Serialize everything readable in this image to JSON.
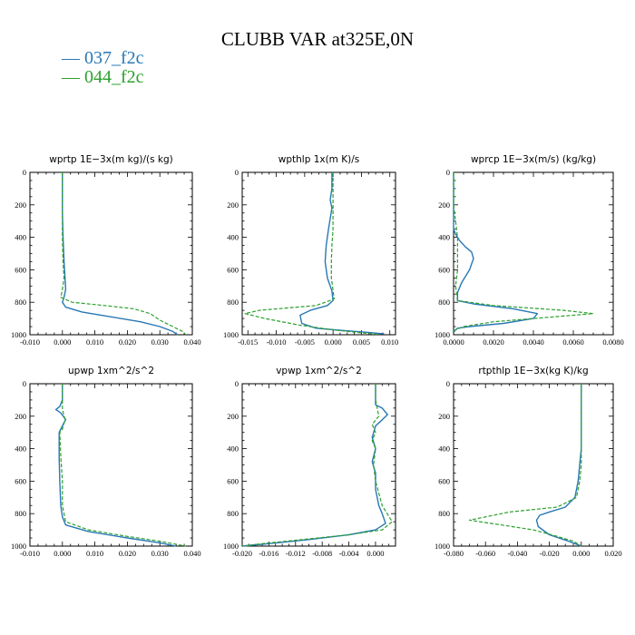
{
  "figure": {
    "title": "CLUBB VAR at325E,0N",
    "legend": [
      {
        "label": "— 037_f2c",
        "color": "#2878b5"
      },
      {
        "label": "— 044_f2c",
        "color": "#2ca02c"
      }
    ]
  },
  "chart_data": [
    {
      "type": "line",
      "title": "wprtp   1E−3x(m kg)/(s kg)",
      "xlim": [
        -0.01,
        0.04
      ],
      "xticks": [
        -0.01,
        0.0,
        0.01,
        0.02,
        0.03,
        0.04
      ],
      "xtick_labels": [
        "-0.010",
        "0.000",
        "0.010",
        "0.020",
        "0.030",
        "0.040"
      ],
      "ylim": [
        0,
        1000
      ],
      "yticks": [
        0,
        200,
        400,
        600,
        800,
        1000
      ],
      "ytick_labels": [
        "0",
        "200",
        "400",
        "600",
        "800",
        "1000"
      ],
      "series": [
        {
          "name": "037_f2c",
          "color": "#2878b5",
          "dashed": false,
          "x": [
            0.0,
            0.0,
            0.0,
            0.0002,
            0.0005,
            0.0008,
            0.001,
            0.0005,
            0.0,
            0.001,
            0.006,
            0.015,
            0.024,
            0.03,
            0.034,
            0.0355
          ],
          "y": [
            0,
            100,
            250,
            400,
            550,
            650,
            720,
            770,
            800,
            830,
            860,
            890,
            920,
            950,
            980,
            1000
          ]
        },
        {
          "name": "044_f2c",
          "color": "#2ca02c",
          "dashed": true,
          "x": [
            0.0,
            0.0,
            0.0,
            0.0,
            0.0002,
            0.0005,
            0.0,
            -0.0005,
            0.003,
            0.013,
            0.022,
            0.027,
            0.03,
            0.034,
            0.037,
            0.038
          ],
          "y": [
            0,
            100,
            250,
            400,
            550,
            650,
            720,
            770,
            800,
            820,
            840,
            870,
            910,
            950,
            980,
            1000
          ]
        }
      ]
    },
    {
      "type": "line",
      "title": "wpthlp   1x(m K)/s",
      "xlim": [
        -0.016,
        0.011
      ],
      "xticks": [
        -0.015,
        -0.01,
        -0.005,
        0.0,
        0.005,
        0.01
      ],
      "xtick_labels": [
        "-0.015",
        "-0.010",
        "-0.005",
        "0.000",
        "0.005",
        "0.010"
      ],
      "ylim": [
        0,
        1000
      ],
      "yticks": [
        0,
        200,
        400,
        600,
        800,
        1000
      ],
      "ytick_labels": [
        "0",
        "200",
        "400",
        "600",
        "800",
        "1000"
      ],
      "series": [
        {
          "name": "037_f2c",
          "color": "#2878b5",
          "dashed": false,
          "x": [
            -0.0002,
            -0.0002,
            -0.0005,
            -0.0002,
            -0.0008,
            -0.0012,
            -0.0014,
            -0.001,
            -0.0002,
            0.0,
            -0.001,
            -0.004,
            -0.0058,
            -0.0055,
            -0.003,
            0.002,
            0.006,
            0.009
          ],
          "y": [
            0,
            100,
            170,
            220,
            350,
            450,
            550,
            650,
            730,
            790,
            820,
            850,
            880,
            930,
            960,
            975,
            985,
            995
          ]
        },
        {
          "name": "044_f2c",
          "color": "#2ca02c",
          "dashed": true,
          "x": [
            0.0,
            0.0,
            0.0,
            0.0,
            -0.0002,
            -0.0003,
            -0.0003,
            0.0002,
            -0.003,
            -0.013,
            -0.0155,
            -0.012,
            -0.006,
            0.0,
            0.004,
            0.008
          ],
          "y": [
            0,
            100,
            200,
            350,
            450,
            550,
            650,
            780,
            820,
            850,
            870,
            900,
            940,
            970,
            985,
            998
          ]
        }
      ]
    },
    {
      "type": "line",
      "title": "wprcp   1E−3x(m/s) (kg/kg)",
      "xlim": [
        0.0,
        0.008
      ],
      "xticks": [
        0.0,
        0.002,
        0.004,
        0.006,
        0.008
      ],
      "xtick_labels": [
        "0.0000",
        "0.0020",
        "0.0040",
        "0.0060",
        "0.0080"
      ],
      "ylim": [
        0,
        1000
      ],
      "yticks": [
        0,
        200,
        400,
        600,
        800,
        1000
      ],
      "ytick_labels": [
        "0",
        "200",
        "400",
        "600",
        "800",
        "1000"
      ],
      "series": [
        {
          "name": "037_f2c",
          "color": "#2878b5",
          "dashed": false,
          "x": [
            0.0,
            0.0,
            0.0,
            0.0001,
            0.0003,
            0.0006,
            0.0009,
            0.001,
            0.0008,
            0.0004,
            0.0002,
            0.0002,
            0.001,
            0.003,
            0.0042,
            0.004,
            0.0025,
            0.0008,
            0.0002,
            0.0
          ],
          "y": [
            0,
            200,
            350,
            380,
            420,
            460,
            490,
            530,
            600,
            680,
            740,
            790,
            810,
            840,
            870,
            900,
            930,
            950,
            960,
            980
          ]
        },
        {
          "name": "044_f2c",
          "color": "#2ca02c",
          "dashed": true,
          "x": [
            0.0,
            0.0,
            0.0001,
            0.0002,
            0.0002,
            0.0002,
            0.0001,
            0.0002,
            0.002,
            0.0055,
            0.007,
            0.005,
            0.002,
            0.0005,
            0.0001,
            0.0
          ],
          "y": [
            0,
            200,
            300,
            400,
            500,
            600,
            700,
            790,
            820,
            850,
            870,
            890,
            920,
            950,
            970,
            990
          ]
        }
      ]
    },
    {
      "type": "line",
      "title": "upwp   1xm^2/s^2",
      "xlim": [
        -0.01,
        0.04
      ],
      "xticks": [
        -0.01,
        0.0,
        0.01,
        0.02,
        0.03,
        0.04
      ],
      "xtick_labels": [
        "-0.010",
        "0.000",
        "0.010",
        "0.020",
        "0.030",
        "0.040"
      ],
      "ylim": [
        0,
        1000
      ],
      "yticks": [
        0,
        200,
        400,
        600,
        800,
        1000
      ],
      "ytick_labels": [
        "0",
        "200",
        "400",
        "600",
        "800",
        "1000"
      ],
      "series": [
        {
          "name": "037_f2c",
          "color": "#2878b5",
          "dashed": false,
          "x": [
            0.0,
            0.0,
            -0.0008,
            -0.002,
            -0.0005,
            0.001,
            0.0,
            -0.001,
            -0.001,
            -0.0008,
            -0.0005,
            0.0,
            0.001,
            0.008,
            0.02,
            0.03,
            0.035
          ],
          "y": [
            0,
            100,
            140,
            160,
            180,
            220,
            260,
            300,
            450,
            600,
            750,
            820,
            870,
            910,
            950,
            980,
            1000
          ]
        },
        {
          "name": "044_f2c",
          "color": "#2ca02c",
          "dashed": true,
          "x": [
            0.0,
            0.0,
            0.0,
            0.0008,
            0.0,
            -0.0008,
            -0.0005,
            0.0,
            0.0,
            0.001,
            0.008,
            0.02,
            0.03,
            0.038
          ],
          "y": [
            0,
            100,
            160,
            220,
            280,
            300,
            450,
            600,
            750,
            850,
            900,
            940,
            970,
            1000
          ]
        }
      ]
    },
    {
      "type": "line",
      "title": "vpwp   1xm^2/s^2",
      "xlim": [
        -0.02,
        0.003
      ],
      "xticks": [
        -0.02,
        -0.016,
        -0.012,
        -0.008,
        -0.004,
        0.0
      ],
      "xtick_labels": [
        "-0.020",
        "-0.016",
        "-0.012",
        "-0.008",
        "-0.004",
        "0.000"
      ],
      "ylim": [
        0,
        1000
      ],
      "yticks": [
        0,
        200,
        400,
        600,
        800,
        1000
      ],
      "ytick_labels": [
        "0",
        "200",
        "400",
        "600",
        "800",
        "1000"
      ],
      "series": [
        {
          "name": "037_f2c",
          "color": "#2878b5",
          "dashed": false,
          "x": [
            0.0,
            0.0,
            0.0,
            0.001,
            0.0018,
            0.0008,
            0.0,
            -0.0005,
            0.0,
            -0.0005,
            0.0,
            0.0,
            0.0005,
            0.001,
            0.0015,
            0.0,
            -0.004,
            -0.01,
            -0.016,
            -0.02
          ],
          "y": [
            0,
            80,
            130,
            150,
            190,
            230,
            260,
            330,
            400,
            480,
            550,
            650,
            750,
            800,
            860,
            900,
            930,
            960,
            985,
            1000
          ]
        },
        {
          "name": "044_f2c",
          "color": "#2ca02c",
          "dashed": true,
          "x": [
            0.0,
            0.0,
            0.0005,
            -0.0005,
            0.0,
            -0.0005,
            0.0,
            -0.0003,
            0.0,
            0.001,
            0.0025,
            0.001,
            -0.004,
            -0.011,
            -0.017,
            -0.02
          ],
          "y": [
            0,
            100,
            200,
            250,
            300,
            350,
            400,
            500,
            600,
            750,
            850,
            900,
            930,
            960,
            985,
            1000
          ]
        }
      ]
    },
    {
      "type": "line",
      "title": "rtpthlp   1E−3x(kg K)/kg",
      "xlim": [
        -0.08,
        0.02
      ],
      "xticks": [
        -0.08,
        -0.06,
        -0.04,
        -0.02,
        0.0,
        0.02
      ],
      "xtick_labels": [
        "-0.080",
        "-0.060",
        "-0.040",
        "-0.020",
        "0.000",
        "0.020"
      ],
      "ylim": [
        0,
        1000
      ],
      "yticks": [
        0,
        200,
        400,
        600,
        800,
        1000
      ],
      "ytick_labels": [
        "0",
        "200",
        "400",
        "600",
        "800",
        "1000"
      ],
      "series": [
        {
          "name": "037_f2c",
          "color": "#2878b5",
          "dashed": false,
          "x": [
            0.0,
            0.0,
            0.0,
            -0.001,
            -0.002,
            -0.004,
            -0.01,
            -0.02,
            -0.026,
            -0.028,
            -0.027,
            -0.02,
            -0.008,
            0.0
          ],
          "y": [
            0,
            200,
            400,
            500,
            600,
            700,
            760,
            790,
            810,
            840,
            880,
            930,
            970,
            1000
          ]
        },
        {
          "name": "044_f2c",
          "color": "#2ca02c",
          "dashed": true,
          "x": [
            0.0,
            0.0,
            0.0,
            0.0,
            -0.001,
            -0.003,
            -0.015,
            -0.045,
            -0.07,
            -0.05,
            -0.03,
            -0.015,
            -0.005,
            0.0
          ],
          "y": [
            0,
            200,
            400,
            500,
            600,
            700,
            760,
            790,
            840,
            870,
            900,
            940,
            970,
            1000
          ]
        }
      ]
    }
  ]
}
